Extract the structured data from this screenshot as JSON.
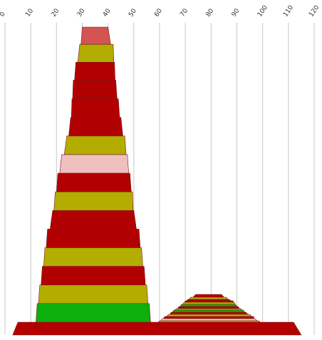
{
  "chart_data": {
    "type": "area",
    "x_axis": {
      "range": [
        0,
        120
      ],
      "ticks": [
        "0",
        "10",
        "20",
        "30",
        "40",
        "50",
        "60",
        "70",
        "80",
        "90",
        "100",
        "110",
        "120"
      ],
      "position": "top",
      "label_rotation": "diagonal",
      "grid": true
    },
    "stacks": [
      {
        "name": "",
        "layers": [
          {
            "x_start": 30.0,
            "x_end": 40.0,
            "color": "#d45353"
          },
          {
            "x_start": 29.0,
            "x_end": 42.0,
            "color": "#b3ad00"
          },
          {
            "x_start": 27.5,
            "x_end": 42.5,
            "color": "#b20000"
          },
          {
            "x_start": 26.5,
            "x_end": 43.0,
            "color": "#b20000"
          },
          {
            "x_start": 26.0,
            "x_end": 44.0,
            "color": "#b20000"
          },
          {
            "x_start": 25.5,
            "x_end": 45.0,
            "color": "#b20000"
          },
          {
            "x_start": 24.0,
            "x_end": 46.5,
            "color": "#b3ad00"
          },
          {
            "x_start": 22.0,
            "x_end": 47.5,
            "color": "#f0c0c0"
          },
          {
            "x_start": 20.5,
            "x_end": 48.5,
            "color": "#b20000"
          },
          {
            "x_start": 19.5,
            "x_end": 49.5,
            "color": "#b3ad00"
          },
          {
            "x_start": 18.5,
            "x_end": 50.0,
            "color": "#b20000"
          },
          {
            "x_start": 16.5,
            "x_end": 52.0,
            "color": "#b20000"
          },
          {
            "x_start": 15.5,
            "x_end": 53.0,
            "color": "#b3ad00"
          },
          {
            "x_start": 14.5,
            "x_end": 54.0,
            "color": "#b20000"
          },
          {
            "x_start": 13.5,
            "x_end": 55.0,
            "color": "#b3ad00"
          },
          {
            "x_start": 12.5,
            "x_end": 56.0,
            "color": "#0cb00c"
          }
        ]
      },
      {
        "name": "",
        "layers": [
          {
            "x_start": 74.0,
            "x_end": 84.0,
            "color": "#b20000"
          },
          {
            "x_start": 72.0,
            "x_end": 86.0,
            "color": "#b3ad00"
          },
          {
            "x_start": 71.0,
            "x_end": 87.0,
            "color": "#b20000"
          },
          {
            "x_start": 70.0,
            "x_end": 88.5,
            "color": "#b20000"
          },
          {
            "x_start": 69.5,
            "x_end": 89.0,
            "color": "#b3ad00"
          },
          {
            "x_start": 68.5,
            "x_end": 89.5,
            "color": "#0cb00c"
          },
          {
            "x_start": 67.5,
            "x_end": 90.5,
            "color": "#b20000"
          },
          {
            "x_start": 66.5,
            "x_end": 91.5,
            "color": "#b3ad00"
          },
          {
            "x_start": 65.5,
            "x_end": 92.5,
            "color": "#0cb00c"
          },
          {
            "x_start": 64.5,
            "x_end": 93.5,
            "color": "#b20000"
          },
          {
            "x_start": 63.5,
            "x_end": 95.0,
            "color": "#b3ad00"
          },
          {
            "x_start": 62.0,
            "x_end": 96.5,
            "color": "#b20000"
          },
          {
            "x_start": 61.0,
            "x_end": 97.0,
            "color": "#f0c0c0"
          },
          {
            "x_start": 60.0,
            "x_end": 98.5,
            "color": "#b3ad00"
          }
        ]
      }
    ],
    "base": {
      "x_start": 3.5,
      "x_end": 113.5,
      "color": "#b20000"
    }
  }
}
